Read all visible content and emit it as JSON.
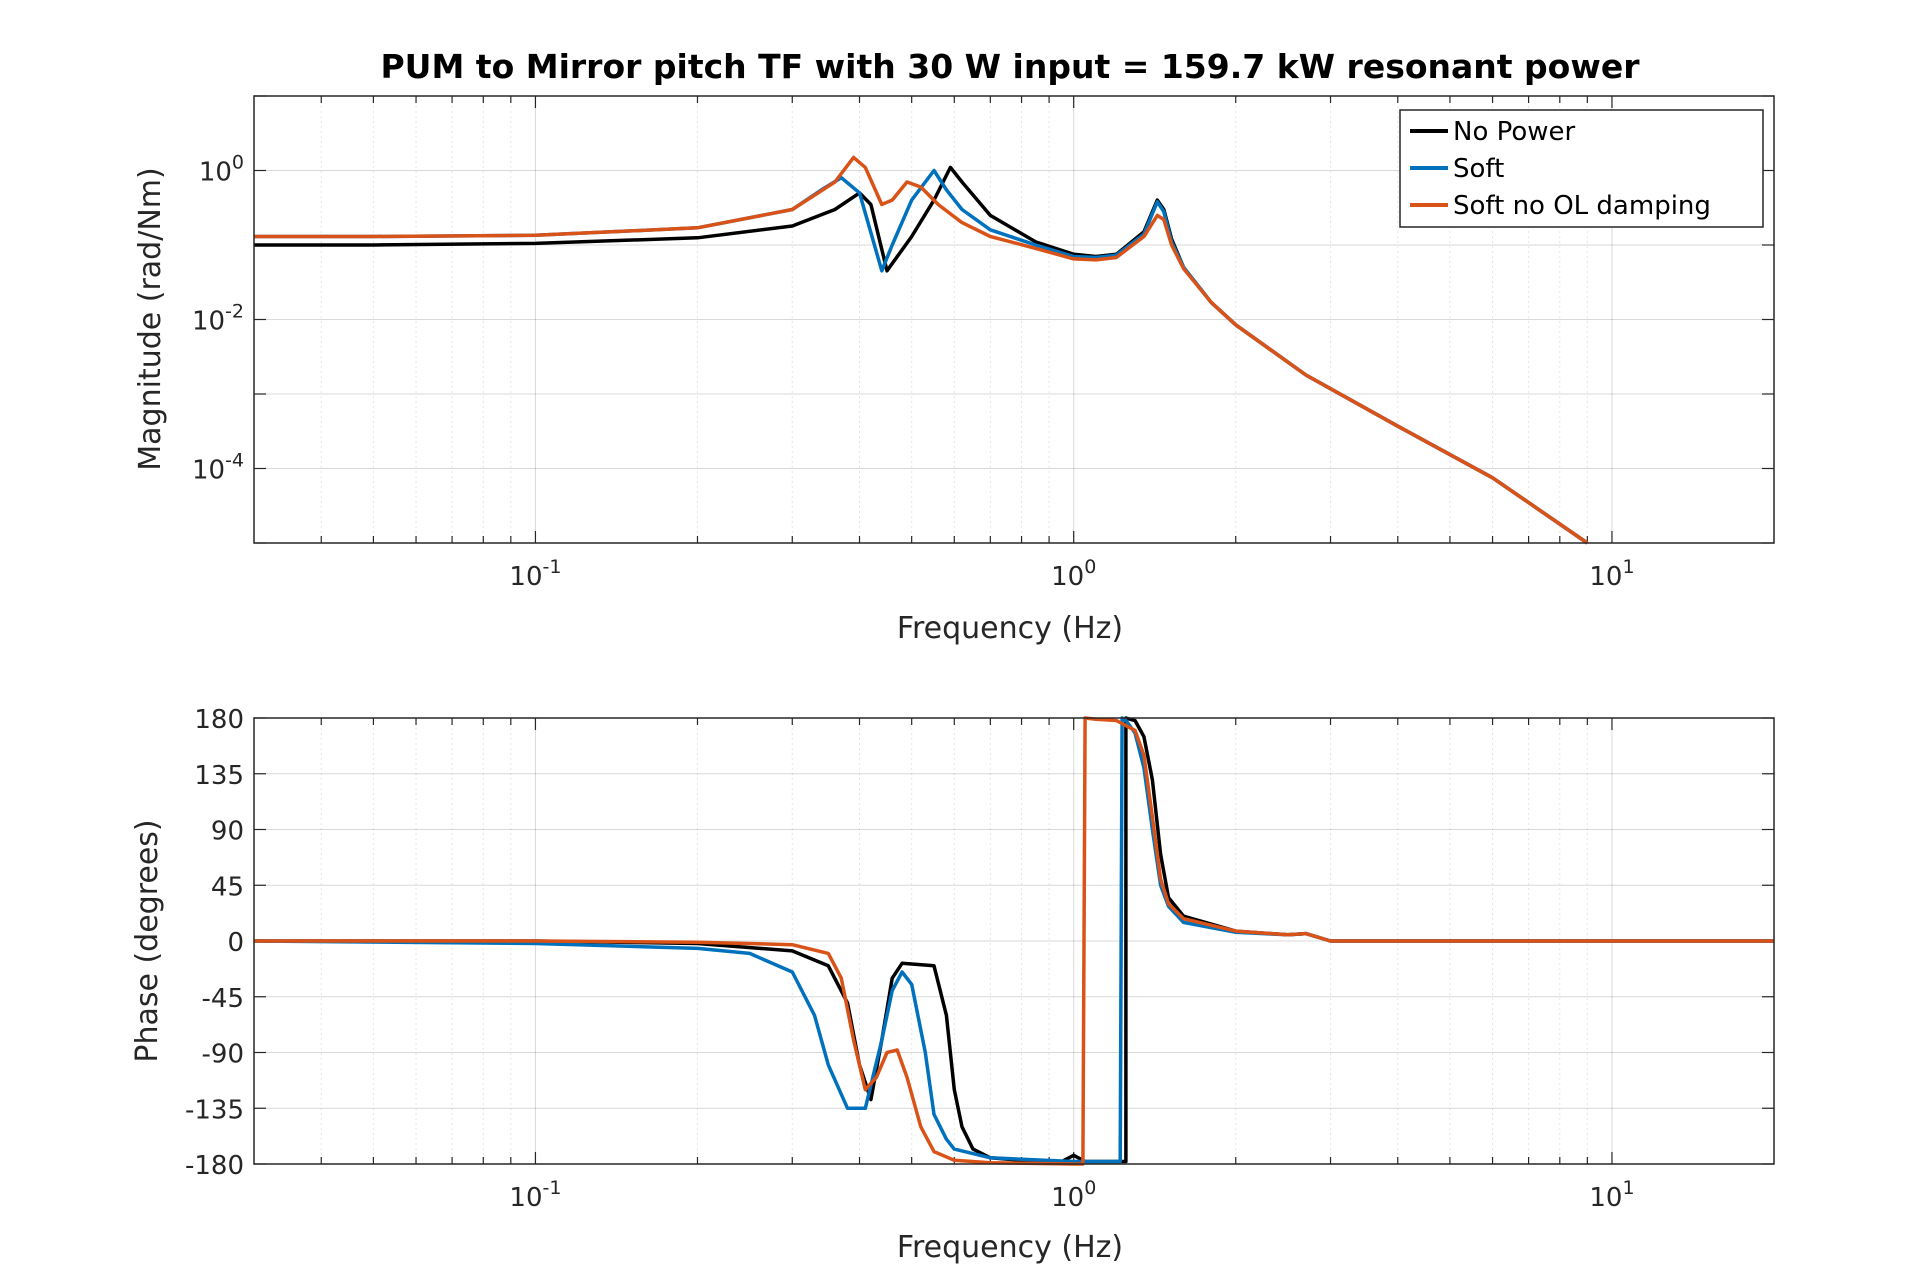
{
  "title": "PUM to Mirror pitch TF with 30 W input = 159.7 kW resonant power",
  "colors": {
    "No Power": "#000000",
    "Soft": "#0072BD",
    "Soft no OL damping": "#D95319"
  },
  "chart_data": [
    {
      "type": "line",
      "xscale": "log",
      "yscale": "log",
      "xlabel": "Frequency (Hz)",
      "ylabel": "Magnitude (rad/Nm)",
      "xlim": [
        0.03,
        20
      ],
      "ylim": [
        1e-05,
        10
      ],
      "grid": true,
      "legend": "top-right",
      "xticks": [
        {
          "label": "10",
          "exp": "-1",
          "value": 0.1
        },
        {
          "label": "10",
          "exp": "0",
          "value": 1
        },
        {
          "label": "10",
          "exp": "1",
          "value": 10
        }
      ],
      "yticks": [
        {
          "label": "10",
          "exp": "0",
          "value": 1
        },
        {
          "label": "10",
          "exp": "-2",
          "value": 0.01
        },
        {
          "label": "10",
          "exp": "-4",
          "value": 0.0001
        }
      ],
      "series": [
        {
          "name": "No Power",
          "x": [
            0.03,
            0.05,
            0.1,
            0.2,
            0.3,
            0.36,
            0.4,
            0.42,
            0.45,
            0.5,
            0.55,
            0.59,
            0.62,
            0.7,
            0.85,
            1.0,
            1.1,
            1.2,
            1.35,
            1.43,
            1.47,
            1.52,
            1.6,
            1.8,
            2.0,
            2.7,
            4.0,
            6.0,
            9.0
          ],
          "y": [
            0.1,
            0.1,
            0.105,
            0.125,
            0.18,
            0.3,
            0.5,
            0.35,
            0.045,
            0.13,
            0.4,
            1.1,
            0.7,
            0.25,
            0.11,
            0.075,
            0.07,
            0.075,
            0.15,
            0.4,
            0.3,
            0.12,
            0.05,
            0.017,
            0.0085,
            0.0018,
            0.00037,
            7.5e-05,
            1e-05
          ]
        },
        {
          "name": "Soft",
          "x": [
            0.03,
            0.05,
            0.1,
            0.2,
            0.3,
            0.34,
            0.37,
            0.4,
            0.44,
            0.46,
            0.5,
            0.55,
            0.58,
            0.62,
            0.7,
            0.85,
            1.0,
            1.1,
            1.2,
            1.35,
            1.43,
            1.47,
            1.52,
            1.6,
            1.8,
            2.0,
            2.7,
            4.0,
            6.0,
            9.0
          ],
          "y": [
            0.13,
            0.13,
            0.135,
            0.17,
            0.3,
            0.55,
            0.8,
            0.5,
            0.045,
            0.1,
            0.4,
            1.0,
            0.55,
            0.3,
            0.16,
            0.1,
            0.07,
            0.068,
            0.073,
            0.14,
            0.38,
            0.28,
            0.11,
            0.05,
            0.017,
            0.0085,
            0.0018,
            0.00037,
            7.5e-05,
            1e-05
          ]
        },
        {
          "name": "Soft no OL damping",
          "x": [
            0.03,
            0.05,
            0.1,
            0.2,
            0.3,
            0.36,
            0.39,
            0.41,
            0.44,
            0.46,
            0.49,
            0.52,
            0.56,
            0.62,
            0.7,
            0.85,
            1.0,
            1.1,
            1.2,
            1.35,
            1.43,
            1.47,
            1.52,
            1.6,
            1.8,
            2.0,
            2.7,
            4.0,
            6.0,
            9.0
          ],
          "y": [
            0.13,
            0.13,
            0.135,
            0.17,
            0.3,
            0.7,
            1.5,
            1.1,
            0.35,
            0.4,
            0.7,
            0.6,
            0.35,
            0.2,
            0.13,
            0.09,
            0.065,
            0.063,
            0.068,
            0.13,
            0.25,
            0.22,
            0.1,
            0.048,
            0.017,
            0.0085,
            0.0018,
            0.00037,
            7.5e-05,
            1e-05
          ]
        }
      ]
    },
    {
      "type": "line",
      "xscale": "log",
      "xlabel": "Frequency (Hz)",
      "ylabel": "Phase (degrees)",
      "xlim": [
        0.03,
        20
      ],
      "ylim": [
        -180,
        180
      ],
      "grid": true,
      "xticks": [
        {
          "label": "10",
          "exp": "-1",
          "value": 0.1
        },
        {
          "label": "10",
          "exp": "0",
          "value": 1
        },
        {
          "label": "10",
          "exp": "1",
          "value": 10
        }
      ],
      "yticks": [
        {
          "label": "180",
          "value": 180
        },
        {
          "label": "135",
          "value": 135
        },
        {
          "label": "90",
          "value": 90
        },
        {
          "label": "45",
          "value": 45
        },
        {
          "label": "0",
          "value": 0
        },
        {
          "label": "-45",
          "value": -45
        },
        {
          "label": "-90",
          "value": -90
        },
        {
          "label": "-135",
          "value": -135
        },
        {
          "label": "-180",
          "value": -180
        }
      ],
      "series": [
        {
          "name": "No Power",
          "x": [
            0.03,
            0.1,
            0.2,
            0.3,
            0.35,
            0.38,
            0.4,
            0.42,
            0.44,
            0.46,
            0.48,
            0.55,
            0.58,
            0.6,
            0.62,
            0.65,
            0.7,
            0.8,
            0.95,
            1.0,
            1.05,
            1.2,
            1.25,
            1.25,
            1.3,
            1.35,
            1.4,
            1.45,
            1.5,
            1.6,
            2.0,
            2.5,
            2.7,
            3.0,
            20
          ],
          "y": [
            0,
            0,
            -2,
            -8,
            -20,
            -50,
            -100,
            -128,
            -80,
            -30,
            -18,
            -20,
            -60,
            -120,
            -150,
            -168,
            -175,
            -177,
            -178,
            -173,
            -178,
            -178,
            -178,
            180,
            178,
            165,
            130,
            70,
            35,
            20,
            8,
            5,
            6,
            0,
            0
          ]
        },
        {
          "name": "Soft",
          "x": [
            0.03,
            0.1,
            0.2,
            0.25,
            0.3,
            0.33,
            0.35,
            0.38,
            0.41,
            0.44,
            0.46,
            0.48,
            0.5,
            0.53,
            0.55,
            0.58,
            0.6,
            0.7,
            1.0,
            1.22,
            1.23,
            1.25,
            1.3,
            1.35,
            1.4,
            1.45,
            1.5,
            1.6,
            2.0,
            2.5,
            2.7,
            3.0,
            20
          ],
          "y": [
            0,
            -2,
            -6,
            -10,
            -25,
            -60,
            -100,
            -135,
            -135,
            -80,
            -40,
            -25,
            -35,
            -90,
            -140,
            -160,
            -168,
            -175,
            -178,
            -178,
            180,
            178,
            168,
            140,
            90,
            45,
            28,
            15,
            7,
            5,
            6,
            0,
            0
          ]
        },
        {
          "name": "Soft no OL damping",
          "x": [
            0.03,
            0.1,
            0.2,
            0.3,
            0.35,
            0.37,
            0.39,
            0.41,
            0.43,
            0.45,
            0.47,
            0.49,
            0.52,
            0.55,
            0.6,
            0.7,
            1.0,
            1.04,
            1.05,
            1.1,
            1.2,
            1.3,
            1.35,
            1.4,
            1.45,
            1.5,
            1.6,
            2.0,
            2.5,
            2.7,
            3.0,
            20
          ],
          "y": [
            0,
            0,
            -1,
            -3,
            -10,
            -30,
            -80,
            -120,
            -110,
            -90,
            -88,
            -110,
            -150,
            -170,
            -177,
            -179,
            -180,
            -180,
            180,
            179,
            178,
            170,
            150,
            100,
            50,
            30,
            18,
            8,
            5,
            6,
            0,
            0
          ]
        }
      ]
    }
  ]
}
